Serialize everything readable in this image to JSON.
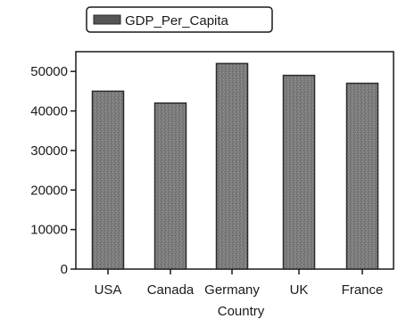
{
  "chart_data": {
    "type": "bar",
    "categories": [
      "USA",
      "Canada",
      "Germany",
      "UK",
      "France"
    ],
    "series": [
      {
        "name": "GDP_Per_Capita",
        "values": [
          45000,
          42000,
          52000,
          49000,
          47000
        ]
      }
    ],
    "xlabel": "Country",
    "ylabel": "",
    "ylim": [
      0,
      55000
    ],
    "yticks": [
      0,
      10000,
      20000,
      30000,
      40000,
      50000
    ],
    "grid": false,
    "legend_position": "top-left",
    "colors": {
      "bar_fill": "#7a7a7a",
      "bar_stroke": "#2a2a2a",
      "axis": "#1a1a1a",
      "legend_swatch": "#555555"
    }
  }
}
